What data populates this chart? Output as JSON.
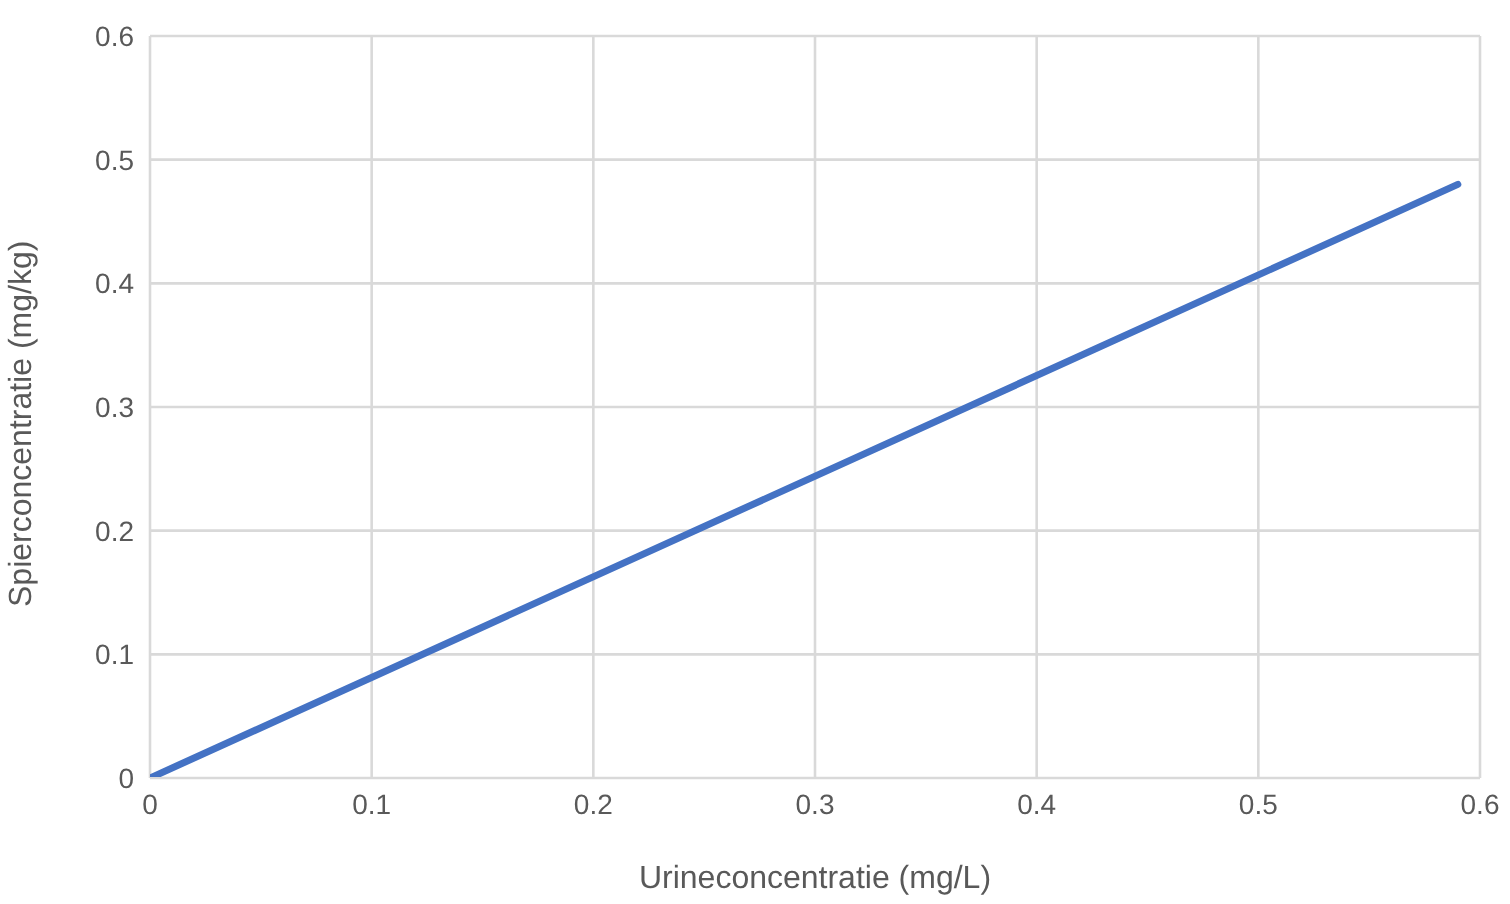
{
  "chart_data": {
    "type": "line",
    "xlabel": "Urineconcentratie (mg/L)",
    "ylabel": "Spierconcentratie (mg/kg)",
    "x": [
      0,
      0.59
    ],
    "series": [
      {
        "color": "#4472c4",
        "values": [
          0,
          0.48
        ]
      }
    ],
    "xlim": [
      0,
      0.6
    ],
    "xticks": [
      0,
      0.1,
      0.2,
      0.3,
      0.4,
      0.5,
      0.6
    ],
    "ylim": [
      0,
      0.6
    ],
    "yticks": [
      0,
      0.1,
      0.2,
      0.3,
      0.4,
      0.5,
      0.6
    ],
    "grid": true,
    "marker": "none",
    "line_style": "solid",
    "legend": false
  }
}
